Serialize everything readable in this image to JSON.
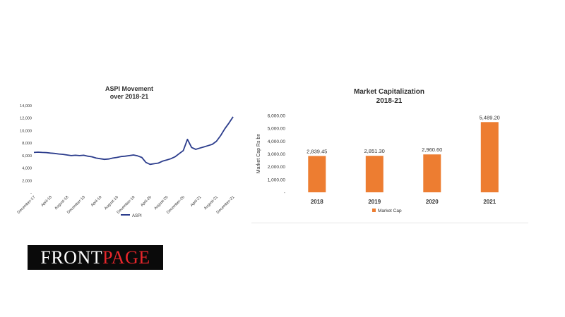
{
  "logo": {
    "part1": "FRONT",
    "part2": "PAGE",
    "part2_color": "#e8262b"
  },
  "chart_data": [
    {
      "type": "line",
      "title": [
        "ASPI Movement",
        "over 2018-21"
      ],
      "xlabel": "",
      "ylabel": "",
      "ylim": [
        0,
        14000
      ],
      "yticks": [
        "14,000",
        "12,000",
        "10,000",
        "8,000",
        "6,000",
        "4,000",
        "2,000",
        "-"
      ],
      "xticks": [
        "December-17",
        "April-18",
        "August-18",
        "December-18",
        "April-19",
        "August-19",
        "December-19",
        "April-20",
        "August-20",
        "December-20",
        "April-21",
        "August-21",
        "December-21"
      ],
      "x_range": [
        "2017-12",
        "2021-12"
      ],
      "legend": "bottom",
      "series": [
        {
          "name": "ASPI",
          "color": "#2b3c8c",
          "x": [
            "2017-12",
            "2018-01",
            "2018-02",
            "2018-03",
            "2018-04",
            "2018-05",
            "2018-06",
            "2018-07",
            "2018-08",
            "2018-09",
            "2018-10",
            "2018-11",
            "2018-12",
            "2019-01",
            "2019-02",
            "2019-03",
            "2019-04",
            "2019-05",
            "2019-06",
            "2019-07",
            "2019-08",
            "2019-09",
            "2019-10",
            "2019-11",
            "2019-12",
            "2020-01",
            "2020-02",
            "2020-03",
            "2020-04",
            "2020-05",
            "2020-06",
            "2020-07",
            "2020-08",
            "2020-09",
            "2020-10",
            "2020-11",
            "2020-12",
            "2021-01",
            "2021-02",
            "2021-03",
            "2021-04",
            "2021-05",
            "2021-06",
            "2021-07",
            "2021-08",
            "2021-09",
            "2021-10",
            "2021-11",
            "2021-12"
          ],
          "values": [
            6500,
            6550,
            6500,
            6480,
            6400,
            6350,
            6250,
            6200,
            6100,
            6000,
            6050,
            6000,
            6050,
            5900,
            5800,
            5600,
            5500,
            5400,
            5450,
            5600,
            5700,
            5850,
            5900,
            6000,
            6100,
            5950,
            5700,
            4900,
            4600,
            4700,
            4800,
            5100,
            5300,
            5500,
            5800,
            6300,
            6800,
            8600,
            7300,
            7000,
            7200,
            7400,
            7600,
            7800,
            8300,
            9200,
            10300,
            11200,
            12200
          ]
        }
      ]
    },
    {
      "type": "bar",
      "title": [
        "Market Capitalization",
        "2018-21"
      ],
      "xlabel": "",
      "ylabel": "Market Cap Rs bn",
      "ylim": [
        0,
        6000
      ],
      "yticks": [
        "6,000.00",
        "5,000.00",
        "4,000.00",
        "3,000.00",
        "2,000.00",
        "1,000.00",
        "-"
      ],
      "categories": [
        "2018",
        "2019",
        "2020",
        "2021"
      ],
      "legend": "bottom",
      "series": [
        {
          "name": "Market Cap",
          "color": "#ed7d31",
          "values": [
            2839.45,
            2851.3,
            2960.6,
            5489.2
          ],
          "labels": [
            "2,839.45",
            "2,851.30",
            "2,960.60",
            "5,489.20"
          ]
        }
      ]
    }
  ]
}
